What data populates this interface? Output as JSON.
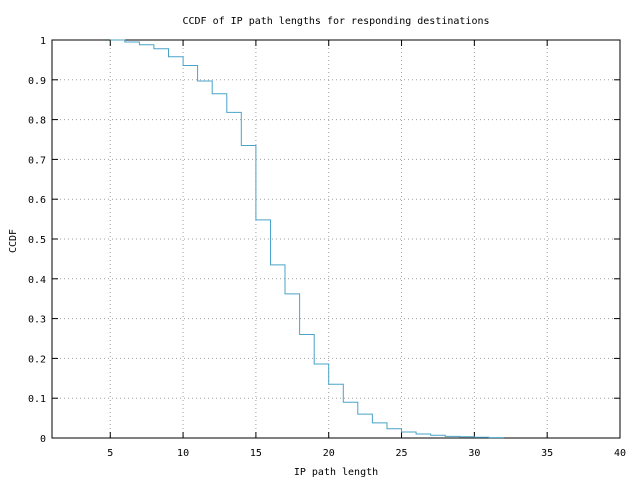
{
  "chart_data": {
    "type": "line",
    "step": true,
    "title": "CCDF of IP path lengths for responding destinations",
    "xlabel": "IP path length",
    "ylabel": "CCDF",
    "xlim": [
      1,
      40
    ],
    "ylim": [
      0,
      1
    ],
    "grid": true,
    "x_ticks": [
      5,
      10,
      15,
      20,
      25,
      30,
      35,
      40
    ],
    "y_ticks": [
      0,
      0.1,
      0.2,
      0.3,
      0.4,
      0.5,
      0.6,
      0.7,
      0.8,
      0.9,
      1
    ],
    "x_tick_labels": [
      "5",
      "10",
      "15",
      "20",
      "25",
      "30",
      "35",
      "40"
    ],
    "y_tick_labels": [
      "0",
      "0.1",
      "0.2",
      "0.3",
      "0.4",
      "0.5",
      "0.6",
      "0.7",
      "0.8",
      "0.9",
      "1"
    ],
    "series": [
      {
        "color": "#4aa3c8",
        "x": [
          5,
          6,
          7,
          8,
          9,
          10,
          11,
          12,
          13,
          14,
          15,
          16,
          17,
          18,
          19,
          20,
          21,
          22,
          23,
          24,
          25,
          26,
          27,
          28,
          29,
          30,
          31,
          32
        ],
        "y": [
          1.0,
          0.995,
          0.988,
          0.978,
          0.958,
          0.936,
          0.897,
          0.865,
          0.818,
          0.735,
          0.548,
          0.435,
          0.362,
          0.26,
          0.186,
          0.135,
          0.09,
          0.06,
          0.038,
          0.023,
          0.015,
          0.01,
          0.007,
          0.004,
          0.003,
          0.002,
          0.001,
          0.0
        ]
      }
    ]
  }
}
